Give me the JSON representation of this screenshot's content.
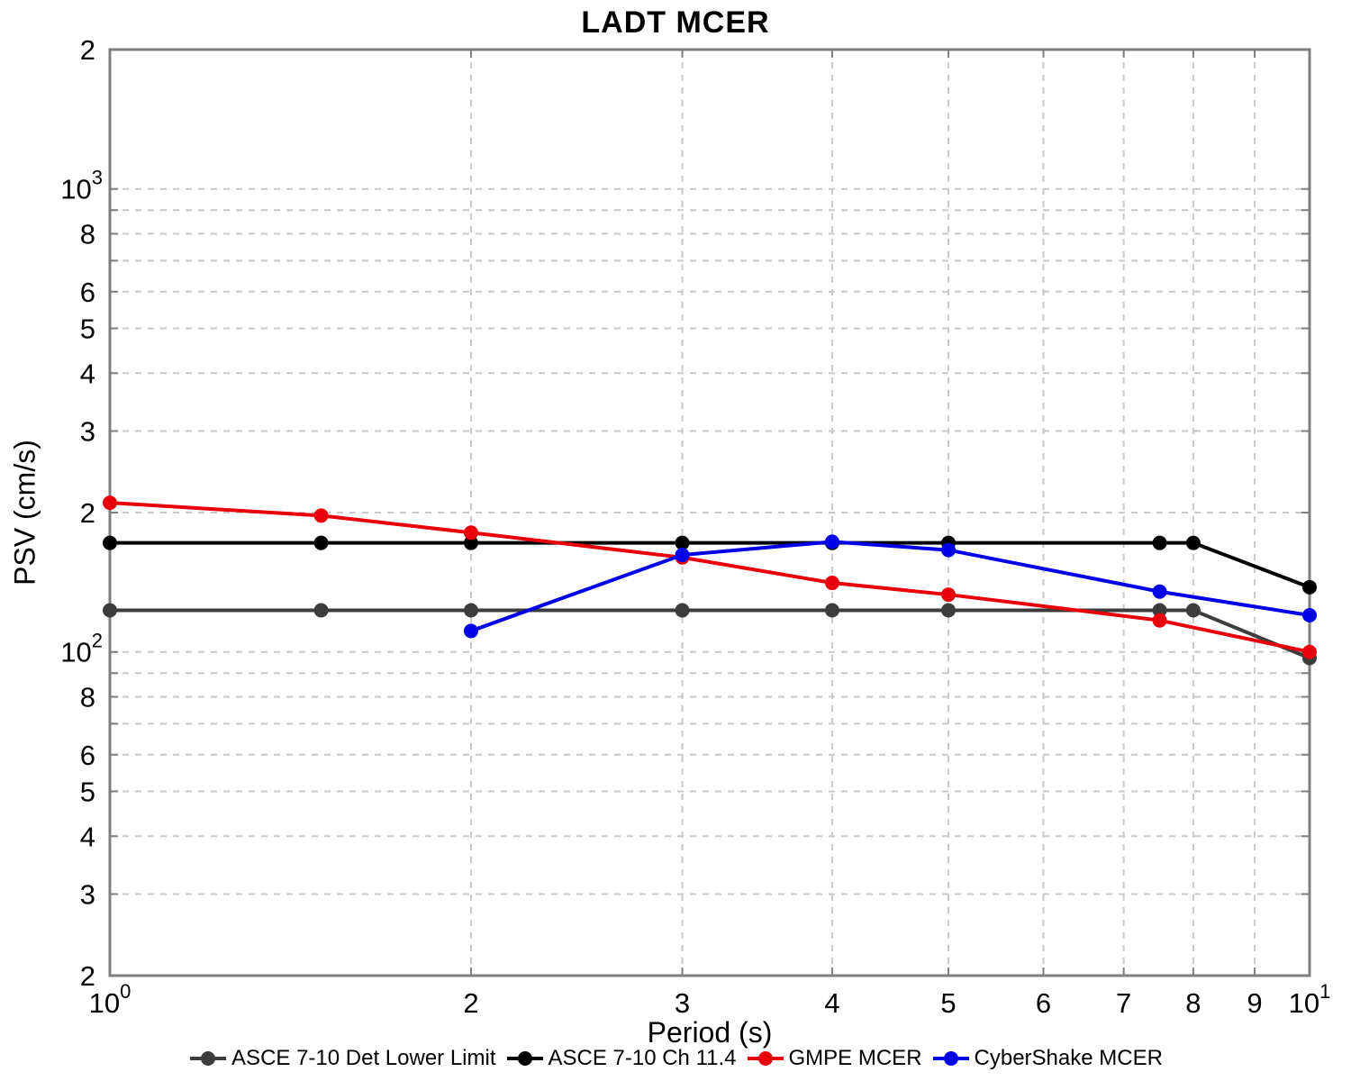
{
  "title": "LADT MCER",
  "colors": {
    "background": "#ffffff",
    "grid": "#c9c9c9",
    "spine": "#7f7f7f",
    "text": "#000000"
  },
  "chart_data": {
    "type": "line",
    "title": "LADT MCER",
    "xlabel": "Period (s)",
    "ylabel": "PSV (cm/s)",
    "x_scale": "log",
    "y_scale": "log",
    "xlim": [
      1,
      10
    ],
    "ylim": [
      20,
      2000
    ],
    "grid": true,
    "legend_position": "bottom",
    "x_gridlines": [
      2,
      3,
      4,
      5,
      6,
      7,
      8,
      9
    ],
    "y_gridlines": [
      30,
      40,
      50,
      60,
      70,
      80,
      90,
      100,
      200,
      300,
      400,
      500,
      600,
      700,
      800,
      900,
      1000
    ],
    "x_ticks": [
      {
        "value": 1,
        "label": "10",
        "exp": "0"
      },
      {
        "value": 2,
        "label": "2"
      },
      {
        "value": 3,
        "label": "3"
      },
      {
        "value": 4,
        "label": "4"
      },
      {
        "value": 5,
        "label": "5"
      },
      {
        "value": 6,
        "label": "6"
      },
      {
        "value": 7,
        "label": "7"
      },
      {
        "value": 8,
        "label": "8"
      },
      {
        "value": 9,
        "label": "9"
      },
      {
        "value": 10,
        "label": "10",
        "exp": "1"
      }
    ],
    "y_ticks": [
      {
        "value": 2000,
        "label": "2"
      },
      {
        "value": 1000,
        "label": "10",
        "exp": "3"
      },
      {
        "value": 800,
        "label": "8"
      },
      {
        "value": 600,
        "label": "6"
      },
      {
        "value": 500,
        "label": "5"
      },
      {
        "value": 400,
        "label": "4"
      },
      {
        "value": 300,
        "label": "3"
      },
      {
        "value": 200,
        "label": "2"
      },
      {
        "value": 100,
        "label": "10",
        "exp": "2"
      },
      {
        "value": 80,
        "label": "8"
      },
      {
        "value": 60,
        "label": "6"
      },
      {
        "value": 50,
        "label": "5"
      },
      {
        "value": 40,
        "label": "4"
      },
      {
        "value": 30,
        "label": "3"
      },
      {
        "value": 20,
        "label": "2"
      }
    ],
    "series": [
      {
        "name": "ASCE 7-10 Det Lower Limit",
        "color": "#3c3c3c",
        "x": [
          1,
          1.5,
          2,
          3,
          4,
          5,
          7.5,
          8,
          10
        ],
        "y": [
          123,
          123,
          123,
          123,
          123,
          123,
          123,
          123,
          97
        ]
      },
      {
        "name": "ASCE 7-10 Ch 11.4",
        "color": "#000000",
        "x": [
          1,
          1.5,
          2,
          3,
          4,
          5,
          7.5,
          8,
          10
        ],
        "y": [
          172,
          172,
          172,
          172,
          172,
          172,
          172,
          172,
          138
        ]
      },
      {
        "name": "GMPE MCER",
        "color": "#e8000a",
        "x": [
          1,
          1.5,
          2,
          3,
          4,
          5,
          7.5,
          10
        ],
        "y": [
          210,
          197,
          181,
          160,
          141,
          133,
          117,
          100
        ]
      },
      {
        "name": "CyberShake MCER",
        "color": "#0000e6",
        "x": [
          2,
          3,
          4,
          5,
          7.5,
          10
        ],
        "y": [
          111,
          162,
          173,
          166,
          135,
          120
        ]
      }
    ]
  }
}
